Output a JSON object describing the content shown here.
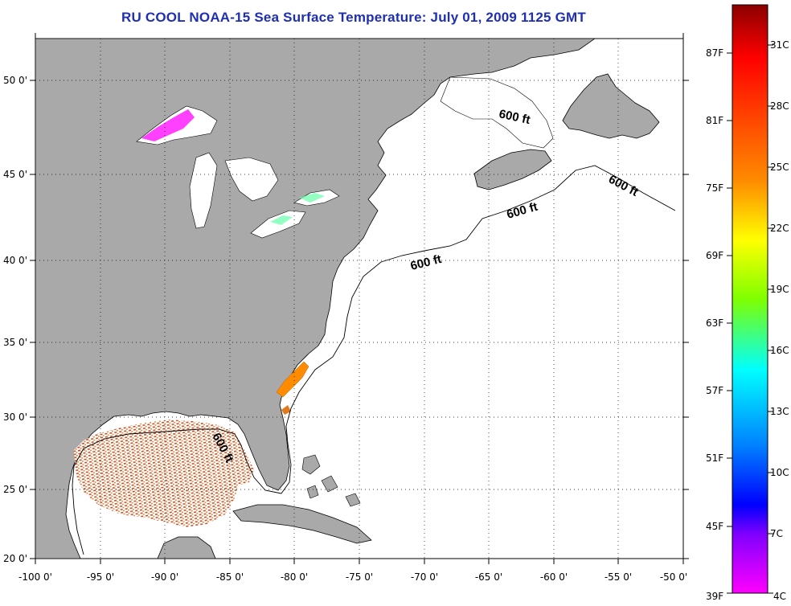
{
  "title": "RU COOL  NOAA-15  Sea Surface Temperature:  July 01, 2009 1125 GMT",
  "map": {
    "longitude_ticks": [
      "-100 0'",
      "-95 0'",
      "-90 0'",
      "-85 0'",
      "-80 0'",
      "-75 0'",
      "-70 0'",
      "-65 0'",
      "-60 0'",
      "-55 0'",
      "-50 0'"
    ],
    "latitude_ticks": [
      "20 0'",
      "25 0'",
      "30 0'",
      "35 0'",
      "40 0'",
      "45 0'",
      "50 0'"
    ],
    "isobath_labels": [
      "600 ft",
      "600 ft",
      "600 ft",
      "600 ft",
      "600 ft"
    ],
    "colors": {
      "land": "#a9a9a9",
      "ocean": "#ffffff",
      "gulf_warm": "#d2691e",
      "carolina_warm": "#ff8c00"
    }
  },
  "colorbar": {
    "fahrenheit_labels": [
      "87F",
      "81F",
      "75F",
      "69F",
      "63F",
      "57F",
      "51F",
      "45F",
      "39F"
    ],
    "celsius_labels": [
      "31C",
      "28C",
      "25C",
      "22C",
      "19C",
      "16C",
      "13C",
      "10C",
      "7C",
      "4C"
    ],
    "gradient_stops": [
      "#8b0000",
      "#ff0000",
      "#ff8c00",
      "#ffff00",
      "#7fff00",
      "#00ffff",
      "#0080ff",
      "#0000ff",
      "#8000ff",
      "#ff00ff"
    ]
  }
}
